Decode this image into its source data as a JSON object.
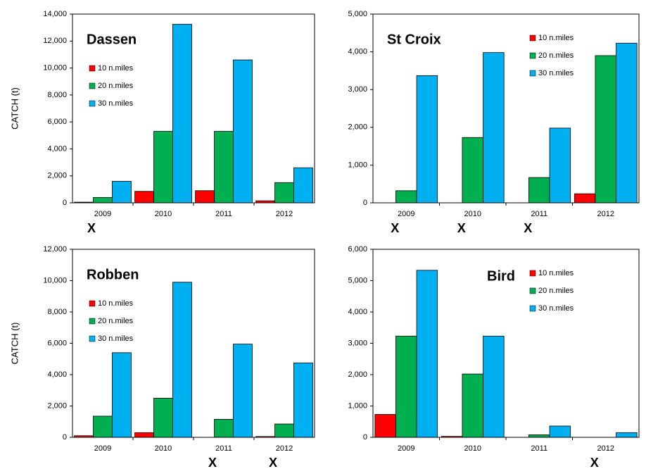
{
  "chart_data": [
    {
      "type": "bar",
      "title": "Dassen",
      "y_label": "CATCH (t)",
      "categories": [
        "2009",
        "2010",
        "2011",
        "2012"
      ],
      "annotations": [
        "X",
        null,
        null,
        null
      ],
      "legend": "upper left",
      "series": [
        {
          "name": "10 n.miles",
          "color": "#ff0000",
          "values": [
            50,
            850,
            900,
            150
          ]
        },
        {
          "name": "20 n.miles",
          "color": "#00b050",
          "values": [
            400,
            5300,
            5300,
            1500
          ]
        },
        {
          "name": "30 n.miles",
          "color": "#00b0f0",
          "values": [
            1600,
            13250,
            10600,
            2600
          ]
        }
      ],
      "ylim": [
        0,
        14000
      ],
      "yticks": [
        0,
        {
          "value": 2000,
          "label": "2,000"
        },
        {
          "value": 4000,
          "label": "4,000"
        },
        {
          "value": 6000,
          "label": "6,000"
        },
        {
          "value": 8000,
          "label": "8,000"
        },
        {
          "value": 10000,
          "label": "10,000"
        },
        {
          "value": 12000,
          "label": "12,000"
        },
        {
          "value": 14000,
          "label": "14,000"
        }
      ]
    },
    {
      "type": "bar",
      "title": "St Croix",
      "categories": [
        "2009",
        "2010",
        "2011",
        "2012"
      ],
      "annotations": [
        "X",
        "X",
        "X",
        null
      ],
      "legend": "upper right",
      "series": [
        {
          "name": "10 n.miles",
          "color": "#ff0000",
          "values": [
            0,
            0,
            0,
            240
          ]
        },
        {
          "name": "20 n.miles",
          "color": "#00b050",
          "values": [
            320,
            1730,
            670,
            3900
          ]
        },
        {
          "name": "30 n.miles",
          "color": "#00b0f0",
          "values": [
            3370,
            3980,
            1980,
            4230
          ]
        }
      ],
      "ylim": [
        0,
        5000
      ],
      "yticks": [
        0,
        {
          "value": 1000,
          "label": "1,000"
        },
        {
          "value": 2000,
          "label": "2,000"
        },
        {
          "value": 3000,
          "label": "3,000"
        },
        {
          "value": 4000,
          "label": "4,000"
        },
        {
          "value": 5000,
          "label": "5,000"
        }
      ]
    },
    {
      "type": "bar",
      "title": "Robben",
      "y_label": "CATCH (t)",
      "categories": [
        "2009",
        "2010",
        "2011",
        "2012"
      ],
      "annotations": [
        null,
        null,
        "X",
        "X"
      ],
      "legend": "upper left",
      "series": [
        {
          "name": "10 n.miles",
          "color": "#ff0000",
          "values": [
            100,
            300,
            0,
            50
          ]
        },
        {
          "name": "20 n.miles",
          "color": "#00b050",
          "values": [
            1350,
            2500,
            1150,
            850
          ]
        },
        {
          "name": "30 n.miles",
          "color": "#00b0f0",
          "values": [
            5400,
            9900,
            5950,
            4750
          ]
        }
      ],
      "ylim": [
        0,
        12000
      ],
      "yticks": [
        0,
        {
          "value": 2000,
          "label": "2,000"
        },
        {
          "value": 4000,
          "label": "4,000"
        },
        {
          "value": 6000,
          "label": "6,000"
        },
        {
          "value": 8000,
          "label": "8,000"
        },
        {
          "value": 10000,
          "label": "10,000"
        },
        {
          "value": 12000,
          "label": "12,000"
        }
      ]
    },
    {
      "type": "bar",
      "title": "Bird",
      "categories": [
        "2009",
        "2010",
        "2011",
        "2012"
      ],
      "annotations": [
        null,
        null,
        null,
        "X"
      ],
      "legend": "upper right",
      "series": [
        {
          "name": "10 n.miles",
          "color": "#ff0000",
          "values": [
            730,
            30,
            0,
            0
          ]
        },
        {
          "name": "20 n.miles",
          "color": "#00b050",
          "values": [
            3230,
            2020,
            80,
            0
          ]
        },
        {
          "name": "30 n.miles",
          "color": "#00b0f0",
          "values": [
            5330,
            3230,
            360,
            150
          ]
        }
      ],
      "ylim": [
        0,
        6000
      ],
      "yticks": [
        0,
        {
          "value": 1000,
          "label": "1,000"
        },
        {
          "value": 2000,
          "label": "2,000"
        },
        {
          "value": 3000,
          "label": "3,000"
        },
        {
          "value": 4000,
          "label": "4,000"
        },
        {
          "value": 5000,
          "label": "5,000"
        },
        {
          "value": 6000,
          "label": "6,000"
        }
      ]
    }
  ]
}
